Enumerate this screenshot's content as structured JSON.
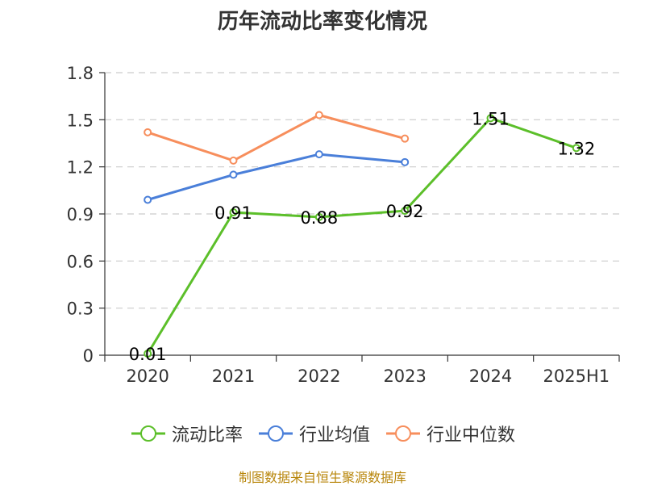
{
  "chart_data": {
    "type": "line",
    "title": "历年流动比率变化情况",
    "categories": [
      "2020",
      "2021",
      "2022",
      "2023",
      "2024",
      "2025H1"
    ],
    "ylim": [
      0,
      1.8
    ],
    "yticks": [
      "0",
      "0.3",
      "0.6",
      "0.9",
      "1.2",
      "1.5",
      "1.8"
    ],
    "grid": true,
    "legend_position": "bottom",
    "series": [
      {
        "name": "流动比率",
        "color": "#5cbf2a",
        "values": [
          0.01,
          0.91,
          0.88,
          0.92,
          1.51,
          1.32
        ],
        "data_labels": [
          "0.01",
          "0.91",
          "0.88",
          "0.92",
          "1.51",
          "1.32"
        ]
      },
      {
        "name": "行业均值",
        "color": "#4a7fd9",
        "values": [
          0.99,
          1.15,
          1.28,
          1.23,
          null,
          null
        ]
      },
      {
        "name": "行业中位数",
        "color": "#f78e5c",
        "values": [
          1.42,
          1.24,
          1.53,
          1.38,
          null,
          null
        ]
      }
    ]
  },
  "footer": {
    "source": "制图数据来自恒生聚源数据库"
  }
}
